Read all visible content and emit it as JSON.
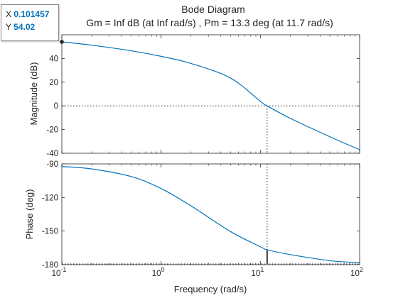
{
  "chart_data": {
    "type": "line",
    "title": "Bode Diagram",
    "subtitle": "Gm = Inf dB (at Inf rad/s) ,  Pm = 13.3 deg (at 11.7 rad/s)",
    "xlabel": "Frequency  (rad/s)",
    "xscale": "log",
    "xlim": [
      0.1,
      100
    ],
    "x_ticks": [
      {
        "value": 0.1,
        "base": "10",
        "exp": "-1"
      },
      {
        "value": 1,
        "base": "10",
        "exp": "0"
      },
      {
        "value": 10,
        "base": "10",
        "exp": "1"
      },
      {
        "value": 100,
        "base": "10",
        "exp": "2"
      }
    ],
    "crossover_frequency": 11.7,
    "magnitude": {
      "ylabel": "Magnitude (dB)",
      "ylim": [
        -40,
        60
      ],
      "yticks": [
        "-40",
        "-20",
        "0",
        "20",
        "40"
      ],
      "ytick_values": [
        -40,
        -20,
        0,
        20,
        40
      ],
      "reference_line": 0,
      "x": [
        0.1,
        0.2,
        0.5,
        1,
        2,
        5,
        10,
        11.7,
        20,
        50,
        100
      ],
      "y": [
        54.02,
        51.2,
        46.5,
        41.8,
        35.8,
        23.5,
        3.8,
        0,
        -10.5,
        -26.0,
        -37.0
      ]
    },
    "phase": {
      "ylabel": "Phase (deg)",
      "ylim": [
        -180,
        -90
      ],
      "yticks": [
        "-180",
        "-150",
        "-120",
        "-90"
      ],
      "ytick_values": [
        -180,
        -150,
        -120,
        -90
      ],
      "reference_line": -180,
      "x": [
        0.1,
        0.2,
        0.5,
        1,
        2,
        5,
        10,
        11.7,
        20,
        50,
        100
      ],
      "y": [
        -92.3,
        -94.5,
        -101.3,
        -112.0,
        -127.5,
        -150.4,
        -164.0,
        -166.7,
        -171.0,
        -176.4,
        -178.3
      ]
    },
    "margin_marker": {
      "x": 11.7,
      "phase": -166.7
    },
    "colors": {
      "line": "#0072bd",
      "axes": "#262626",
      "reference": "#262626"
    }
  },
  "datatip": {
    "x_label": "X",
    "x_value": "0.101457",
    "y_label": "Y",
    "y_value": "54.02"
  }
}
